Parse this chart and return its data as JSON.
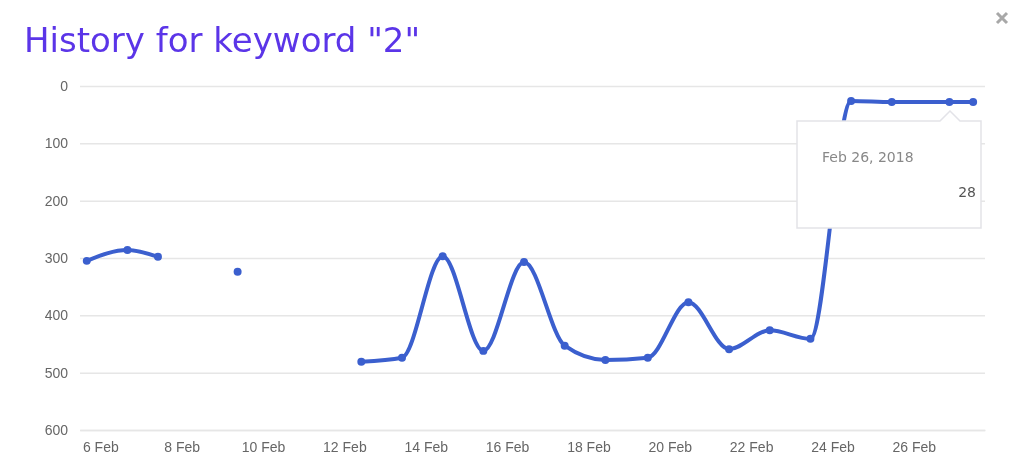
{
  "chart_data": {
    "type": "line",
    "title": "History for keyword \"2\"",
    "x": [
      "2018-02-05T16:00",
      "2018-02-06T16:00",
      "2018-02-07T10:00",
      "2018-02-08T10:00",
      "2018-02-09T09:00",
      "2018-02-10T10:00",
      "2018-02-11T10:00",
      "2018-02-12T10:00",
      "2018-02-13T10:00",
      "2018-02-14T10:00",
      "2018-02-15T10:00",
      "2018-02-16T10:00",
      "2018-02-17T10:00",
      "2018-02-18T10:00",
      "2018-02-19T11:00",
      "2018-02-20T11:00",
      "2018-02-21T11:00",
      "2018-02-22T11:00",
      "2018-02-23T11:00",
      "2018-02-24T11:00",
      "2018-02-25T11:00",
      "2018-02-26T21:00",
      "2018-02-27T11:00"
    ],
    "series": [
      {
        "color": "#3b5fce",
        "values": [
          305,
          286,
          298,
          null,
          324,
          null,
          null,
          481,
          474,
          297,
          462,
          307,
          453,
          478,
          474,
          377,
          459,
          426,
          441,
          26,
          28,
          28,
          28
        ]
      }
    ],
    "xlim": [
      "2018-02-05T12:00",
      "2018-02-27T18:00"
    ],
    "xticks": [
      {
        "value": "2018-02-06",
        "label": "6 Feb"
      },
      {
        "value": "2018-02-08",
        "label": "8 Feb"
      },
      {
        "value": "2018-02-10",
        "label": "10 Feb"
      },
      {
        "value": "2018-02-12",
        "label": "12 Feb"
      },
      {
        "value": "2018-02-14",
        "label": "14 Feb"
      },
      {
        "value": "2018-02-16",
        "label": "16 Feb"
      },
      {
        "value": "2018-02-18",
        "label": "18 Feb"
      },
      {
        "value": "2018-02-20",
        "label": "20 Feb"
      },
      {
        "value": "2018-02-22",
        "label": "22 Feb"
      },
      {
        "value": "2018-02-24",
        "label": "24 Feb"
      },
      {
        "value": "2018-02-26",
        "label": "26 Feb"
      }
    ],
    "ylim": [
      600,
      0
    ],
    "yticks": [
      0,
      100,
      200,
      300,
      400,
      500,
      600
    ],
    "grid": "y",
    "marker": "circle",
    "line_style": "solid",
    "annotations": [
      "Feb 26, 2018",
      "28"
    ]
  }
}
